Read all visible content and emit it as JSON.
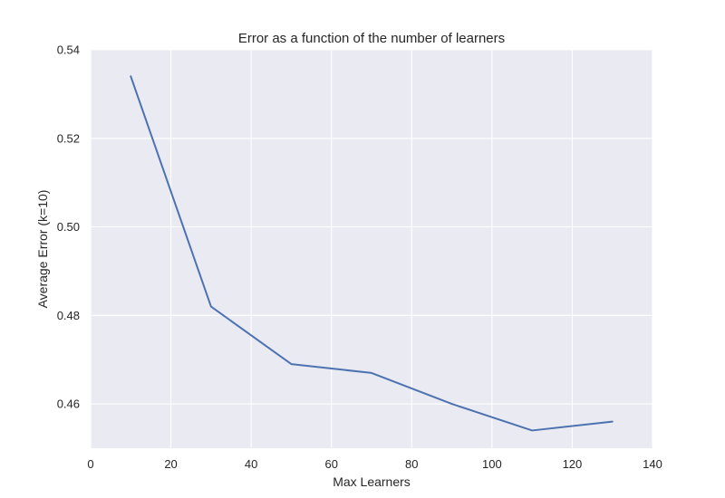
{
  "chart_data": {
    "type": "line",
    "title": "Error as a function of the number of learners",
    "xlabel": "Max Learners",
    "ylabel": "Average Error (k=10)",
    "xlim": [
      0,
      140
    ],
    "ylim": [
      0.45,
      0.54
    ],
    "xticks": [
      0,
      20,
      40,
      60,
      80,
      100,
      120,
      140
    ],
    "yticks": [
      0.46,
      0.48,
      0.5,
      0.52,
      0.54
    ],
    "xtick_labels": [
      "0",
      "20",
      "40",
      "60",
      "80",
      "100",
      "120",
      "140"
    ],
    "ytick_labels": [
      "0.46",
      "0.48",
      "0.50",
      "0.52",
      "0.54"
    ],
    "grid": true,
    "series": [
      {
        "x": [
          10,
          30,
          50,
          70,
          90,
          110,
          130
        ],
        "values": [
          0.534,
          0.482,
          0.469,
          0.467,
          0.46,
          0.454,
          0.456
        ],
        "color": "#4c72b0"
      }
    ],
    "colors": {
      "plot_background": "#eaeaf2",
      "grid": "#ffffff",
      "text": "#262626"
    }
  }
}
